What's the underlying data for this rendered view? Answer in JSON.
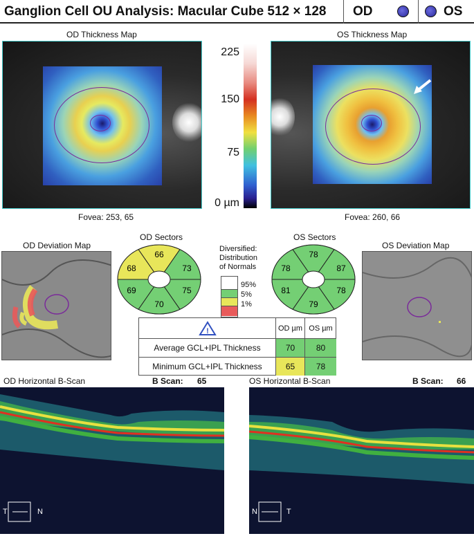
{
  "header": {
    "title": "Ganglion Cell OU Analysis: Macular Cube 512 × 128",
    "od_label": "OD",
    "os_label": "OS"
  },
  "thickness_maps": {
    "od_title": "OD Thickness Map",
    "os_title": "OS Thickness Map",
    "od_fovea": "Fovea: 253, 65",
    "os_fovea": "Fovea: 260, 66"
  },
  "color_scale": {
    "labels": [
      "225",
      "150",
      "75",
      "0 µm"
    ]
  },
  "deviation_maps": {
    "od_title": "OD Deviation Map",
    "os_title": "OS Deviation Map"
  },
  "sectors": {
    "od_title": "OD Sectors",
    "os_title": "OS Sectors",
    "od_values": {
      "top": "66",
      "upper_left": "68",
      "upper_right": "73",
      "lower_left": "69",
      "lower_right": "75",
      "bottom": "70"
    },
    "os_values": {
      "top": "78",
      "upper_left": "78",
      "upper_right": "87",
      "lower_left": "81",
      "lower_right": "78",
      "bottom": "79"
    },
    "od_colors": {
      "top": "#e8e65a",
      "upper_left": "#e8e65a",
      "upper_right": "#74cf74",
      "lower_left": "#74cf74",
      "lower_right": "#74cf74",
      "bottom": "#74cf74"
    },
    "os_colors": {
      "top": "#74cf74",
      "upper_left": "#74cf74",
      "upper_right": "#74cf74",
      "lower_left": "#74cf74",
      "lower_right": "#74cf74",
      "bottom": "#74cf74"
    }
  },
  "legend": {
    "title_line1": "Diversified:",
    "title_line2": "Distribution",
    "title_line3": "of Normals",
    "levels": [
      "95%",
      "5%",
      "1%"
    ],
    "colors": [
      "#ffffff",
      "#74cf74",
      "#e8e65a",
      "#e85a5a"
    ]
  },
  "table": {
    "warning_icon": "warning-triangle-icon",
    "col_od": "OD µm",
    "col_os": "OS µm",
    "rows": [
      {
        "label": "Average GCL+IPL Thickness",
        "od": "70",
        "os": "80",
        "od_color": "#74cf74",
        "os_color": "#74cf74"
      },
      {
        "label": "Minimum GCL+IPL Thickness",
        "od": "65",
        "os": "78",
        "od_color": "#e8e65a",
        "os_color": "#74cf74"
      }
    ]
  },
  "bscans": {
    "od_title": "OD Horizontal B-Scan",
    "os_title": "OS Horizontal B-Scan",
    "od_bscan_label": "B Scan:",
    "od_bscan_num": "65",
    "os_bscan_label": "B Scan:",
    "os_bscan_num": "66",
    "od_orient_left": "T",
    "od_orient_right": "N",
    "os_orient_left": "N",
    "os_orient_right": "T"
  }
}
